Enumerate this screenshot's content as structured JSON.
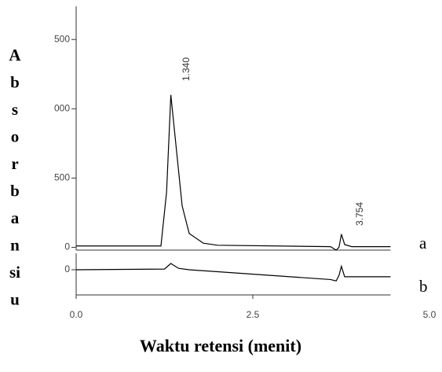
{
  "chart_data": [
    {
      "type": "line",
      "ylabel": [
        "A",
        "b",
        "s",
        "o",
        "r",
        "b",
        "a",
        "n",
        "si",
        "u"
      ],
      "xlim": [
        0,
        4.45
      ],
      "ylim": [
        -20,
        1700
      ],
      "yticks": [
        {
          "value": 1500,
          "label": "500"
        },
        {
          "value": 1000,
          "label": "000"
        },
        {
          "value": 500,
          "label": "500"
        },
        0
      ],
      "annotations": [
        "1.340",
        "3.754"
      ],
      "panel_label": "a",
      "x": [
        0,
        1.2,
        1.28,
        1.34,
        1.4,
        1.5,
        1.6,
        1.8,
        2.0,
        3.6,
        3.68,
        3.72,
        3.754,
        3.8,
        3.9,
        4.45
      ],
      "series": [
        {
          "color": "#000000",
          "values": [
            10,
            10,
            400,
            1100,
            800,
            300,
            100,
            30,
            15,
            5,
            -20,
            0,
            95,
            20,
            5,
            5
          ]
        }
      ]
    },
    {
      "type": "line",
      "xlabel": "Waktu retensi (menit)",
      "xlim": [
        0,
        4.45
      ],
      "ylim": [
        -180,
        90
      ],
      "xticks": [
        {
          "value": 0,
          "label": "0.0"
        },
        2.5,
        {
          "value": 5,
          "label": "5.0"
        }
      ],
      "yticks": [
        0
      ],
      "panel_label": "b",
      "x": [
        0,
        1.25,
        1.34,
        1.45,
        1.6,
        3.6,
        3.68,
        3.72,
        3.754,
        3.8,
        4.45
      ],
      "series": [
        {
          "color": "#000000",
          "values": [
            0,
            5,
            45,
            10,
            0,
            -70,
            -80,
            -40,
            25,
            -50,
            -50
          ]
        }
      ]
    }
  ]
}
